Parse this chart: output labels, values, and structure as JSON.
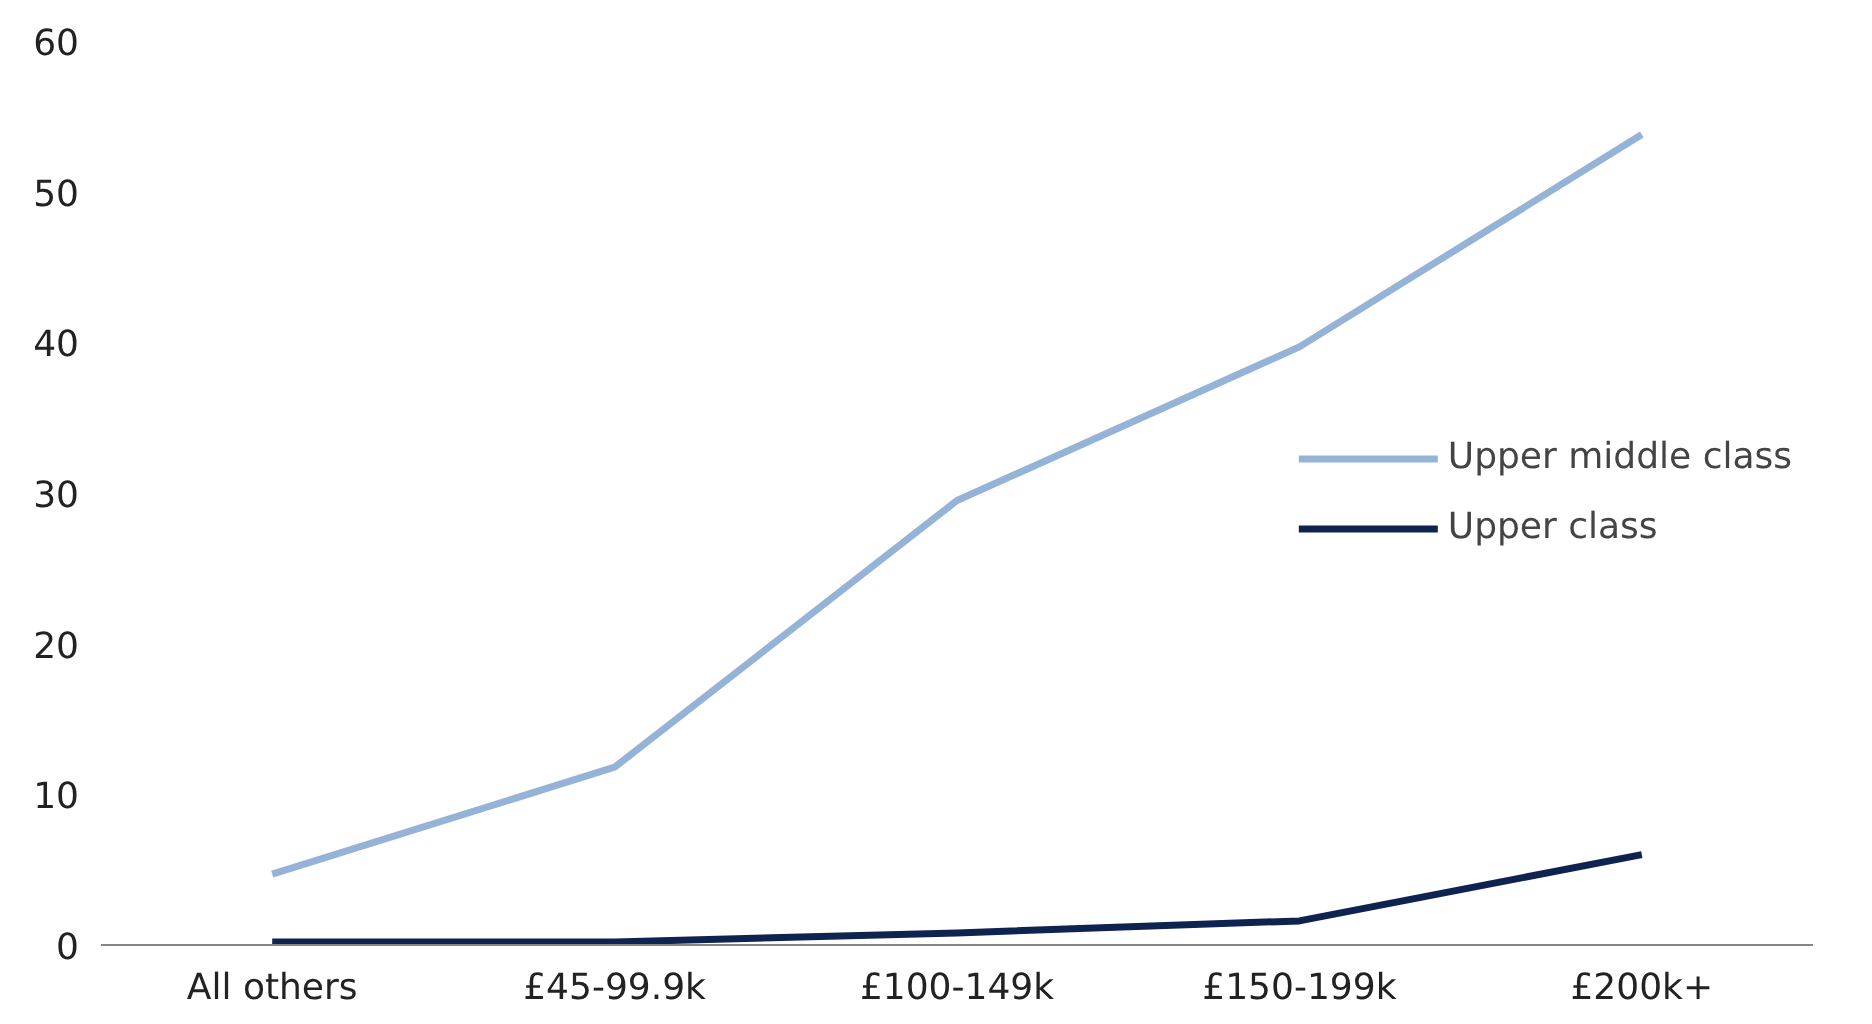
{
  "chart_data": {
    "type": "line",
    "categories": [
      "All others",
      "£45-99.9k",
      "£100-149k",
      "£150-199k",
      "£200k+"
    ],
    "series": [
      {
        "name": "Upper middle class",
        "color": "#95b3d7",
        "values": [
          4.7,
          11.8,
          29.5,
          39.7,
          53.8
        ]
      },
      {
        "name": "Upper class",
        "color": "#0f2350",
        "values": [
          0.2,
          0.2,
          0.8,
          1.6,
          6.0
        ]
      }
    ],
    "ylim": [
      0,
      60
    ],
    "yticks": [
      0,
      10,
      20,
      30,
      40,
      50,
      60
    ],
    "grid": false,
    "legend": "right",
    "marker": "none",
    "line_style": "solid"
  }
}
